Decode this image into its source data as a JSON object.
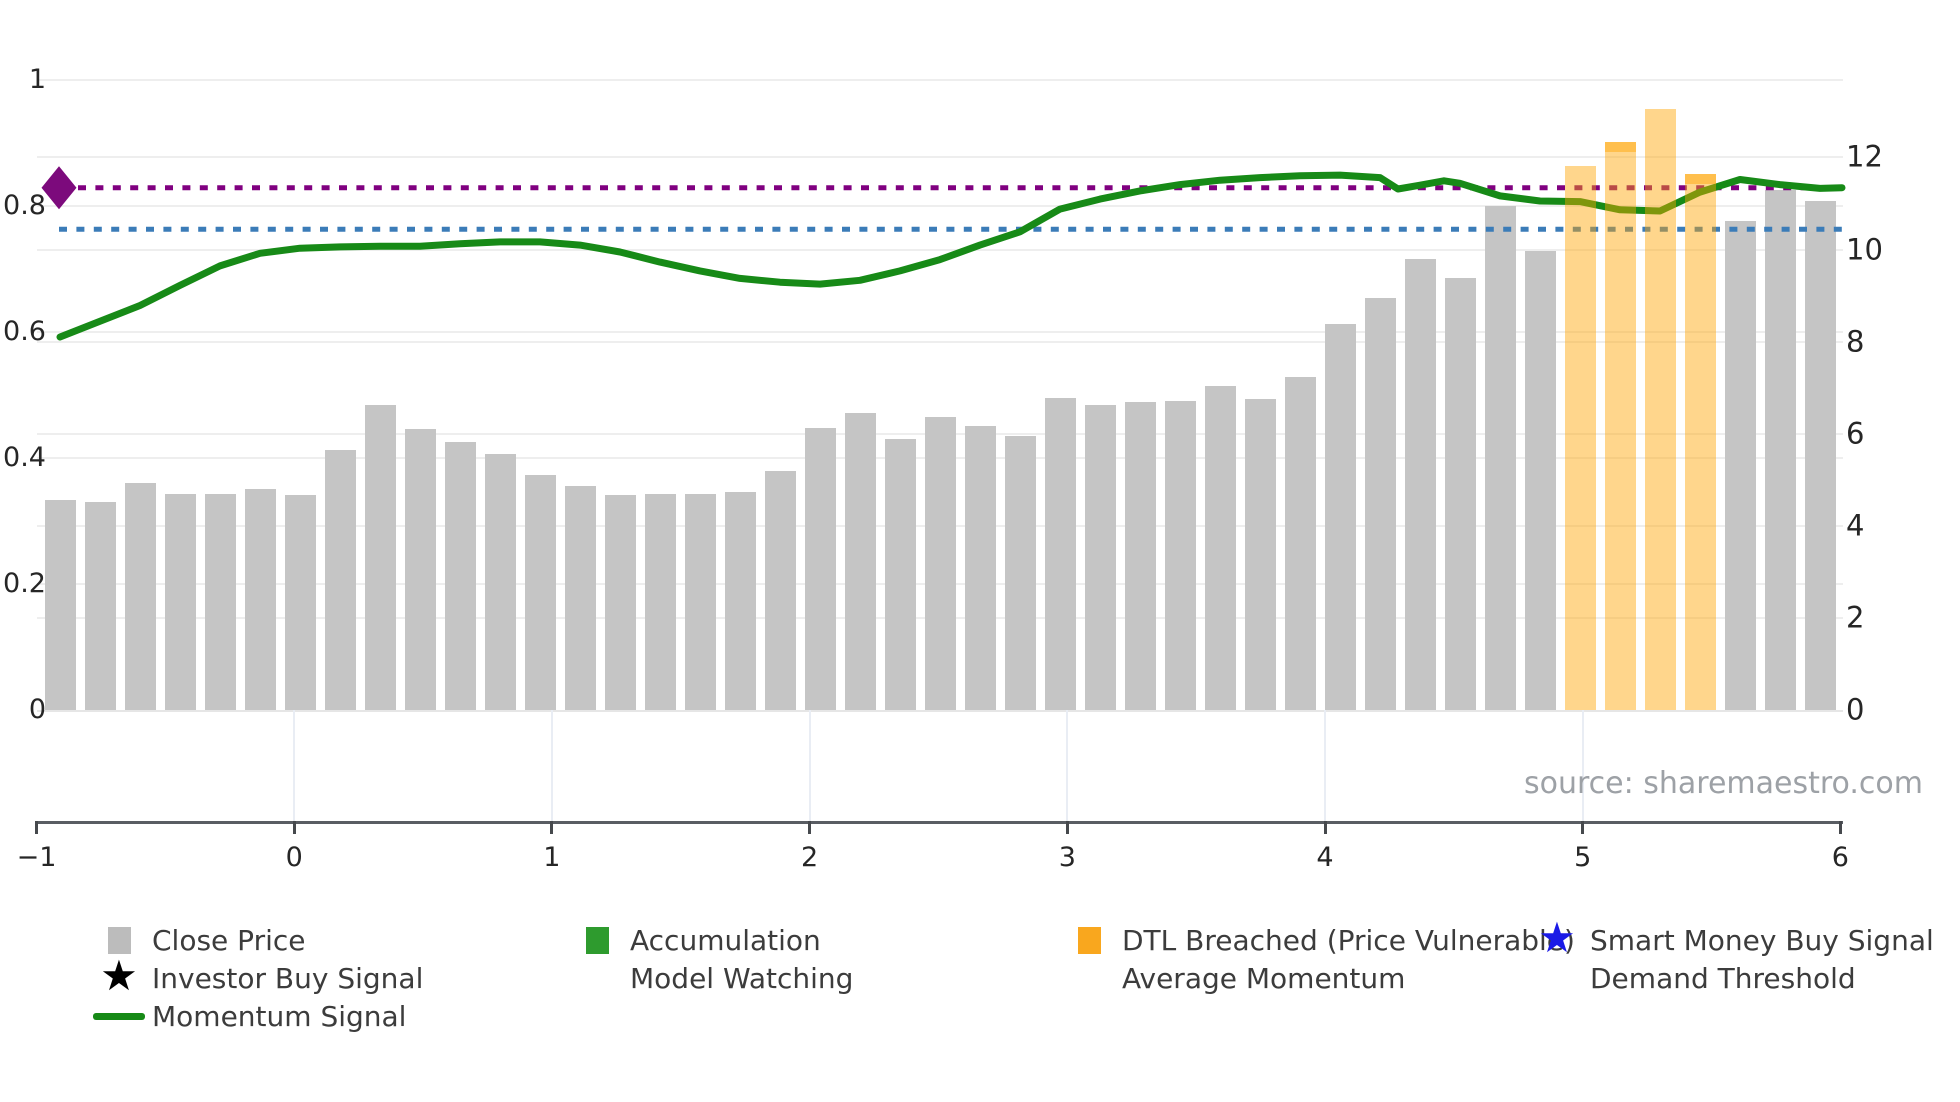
{
  "source_note": "source: sharemaestro.com",
  "colors": {
    "background": "#ffffff",
    "close_price_bar": "#c5c5c5",
    "breach_bar_base": "255,165,0",
    "breach_bar_alpha": 0.45,
    "momentum_line": "#178a17",
    "average_momentum_line": "#3b7cb8",
    "demand_threshold_line": "#800080",
    "demand_diamond": "#7c0a7c",
    "accumulation_swatch": "#2e9b2e",
    "dtl_swatch": "#f9a71e",
    "smart_money_star": "#1a1ae6",
    "investor_star": "#000000",
    "grid": "#eeeeee",
    "spine": "#595d63",
    "tick_text": "#262626",
    "legend_text": "#3c3c3c",
    "source_text": "#9da1a6"
  },
  "axes": {
    "x": {
      "tick_labels": [
        "−1",
        "0",
        "1",
        "2",
        "3",
        "4",
        "5",
        "6"
      ],
      "tick_values": [
        -1,
        0,
        1,
        2,
        3,
        4,
        5,
        6
      ]
    },
    "y_left": {
      "tick_labels": [
        "0",
        "0.2",
        "0.4",
        "0.6",
        "0.8",
        "1"
      ],
      "tick_values": [
        0,
        0.2,
        0.4,
        0.6,
        0.8,
        1
      ],
      "range": [
        0,
        1.0
      ]
    },
    "y_right": {
      "tick_labels": [
        "0",
        "2",
        "4",
        "6",
        "8",
        "10",
        "12"
      ],
      "tick_values": [
        0,
        2,
        4,
        6,
        8,
        10,
        12
      ],
      "range": [
        0,
        13.7
      ]
    }
  },
  "legend": {
    "columns": [
      {
        "items": [
          {
            "marker": "square",
            "color": "#bcbcbc",
            "label": "Close Price"
          },
          {
            "marker": "star",
            "color": "#000000",
            "label": "Investor Buy Signal"
          },
          {
            "marker": "line",
            "color": "#178a17",
            "label": "Momentum Signal"
          }
        ]
      },
      {
        "items": [
          {
            "marker": "square",
            "color": "#2e9b2e",
            "label": "Accumulation"
          },
          {
            "marker": "dashes",
            "color": "#111111",
            "label": "Model Watching"
          }
        ]
      },
      {
        "items": [
          {
            "marker": "square",
            "color": "#f9a71e",
            "label": "DTL Breached (Price Vulnerable)"
          },
          {
            "marker": "dots",
            "color": "#3b7cb8",
            "label": "Average Momentum"
          }
        ]
      },
      {
        "items": [
          {
            "marker": "star",
            "color": "#1a1ae6",
            "label": "Smart Money Buy Signal"
          },
          {
            "marker": "dots",
            "color": "#800080",
            "label": "Demand Threshold"
          }
        ]
      }
    ]
  },
  "chart_data": {
    "type": "bar",
    "title": "",
    "xlabel": "",
    "ylabel": "",
    "bar_count": 45,
    "legend_position": "bottom",
    "grid": true,
    "series": [
      {
        "name": "Close Price",
        "type": "bar",
        "axis": "right",
        "values": [
          4.57,
          4.52,
          4.92,
          4.7,
          4.68,
          4.8,
          4.66,
          5.65,
          6.63,
          6.11,
          5.83,
          5.55,
          5.1,
          4.87,
          4.66,
          4.7,
          4.68,
          4.74,
          5.18,
          6.13,
          6.46,
          5.89,
          6.37,
          6.17,
          5.94,
          6.78,
          6.63,
          6.68,
          6.7,
          7.04,
          6.75,
          7.24,
          8.38,
          8.94,
          9.79,
          9.38,
          10.94,
          9.97,
          11.81,
          12.33,
          13.05,
          11.65,
          10.62,
          11.3,
          11.05
        ]
      },
      {
        "name": "Momentum Signal",
        "type": "line",
        "axis": "left",
        "points": [
          [
            1,
            0.592
          ],
          [
            2,
            0.617
          ],
          [
            3,
            0.642
          ],
          [
            4,
            0.674
          ],
          [
            5,
            0.705
          ],
          [
            6,
            0.725
          ],
          [
            7,
            0.733
          ],
          [
            8,
            0.735
          ],
          [
            9,
            0.736
          ],
          [
            10,
            0.736
          ],
          [
            11,
            0.74
          ],
          [
            12,
            0.743
          ],
          [
            13,
            0.743
          ],
          [
            14,
            0.738
          ],
          [
            15,
            0.727
          ],
          [
            16,
            0.711
          ],
          [
            17,
            0.697
          ],
          [
            18,
            0.685
          ],
          [
            19,
            0.679
          ],
          [
            20,
            0.676
          ],
          [
            21,
            0.682
          ],
          [
            22,
            0.697
          ],
          [
            23,
            0.715
          ],
          [
            24,
            0.738
          ],
          [
            25,
            0.759
          ],
          [
            26,
            0.795
          ],
          [
            27,
            0.811
          ],
          [
            28,
            0.824
          ],
          [
            29,
            0.834
          ],
          [
            30,
            0.841
          ],
          [
            31,
            0.845
          ],
          [
            32,
            0.848
          ],
          [
            33,
            0.849
          ],
          [
            34,
            0.845
          ],
          [
            34.45,
            0.827
          ],
          [
            35,
            0.833
          ],
          [
            35.6,
            0.84
          ],
          [
            36,
            0.836
          ],
          [
            37,
            0.816
          ],
          [
            38,
            0.808
          ],
          [
            39,
            0.807
          ],
          [
            40,
            0.794
          ],
          [
            41,
            0.792
          ],
          [
            42,
            0.822
          ],
          [
            43,
            0.842
          ],
          [
            44,
            0.834
          ],
          [
            45,
            0.828
          ],
          [
            45.55,
            0.829
          ]
        ]
      }
    ],
    "dtl_breached_bars": [
      39,
      40,
      41,
      42
    ],
    "breach_caps": [
      {
        "bar": 40,
        "height": 10
      },
      {
        "bar": 42,
        "height": 10
      }
    ],
    "average_momentum": 0.763,
    "demand_threshold": 0.829,
    "demand_marker_at_bar": 1
  }
}
